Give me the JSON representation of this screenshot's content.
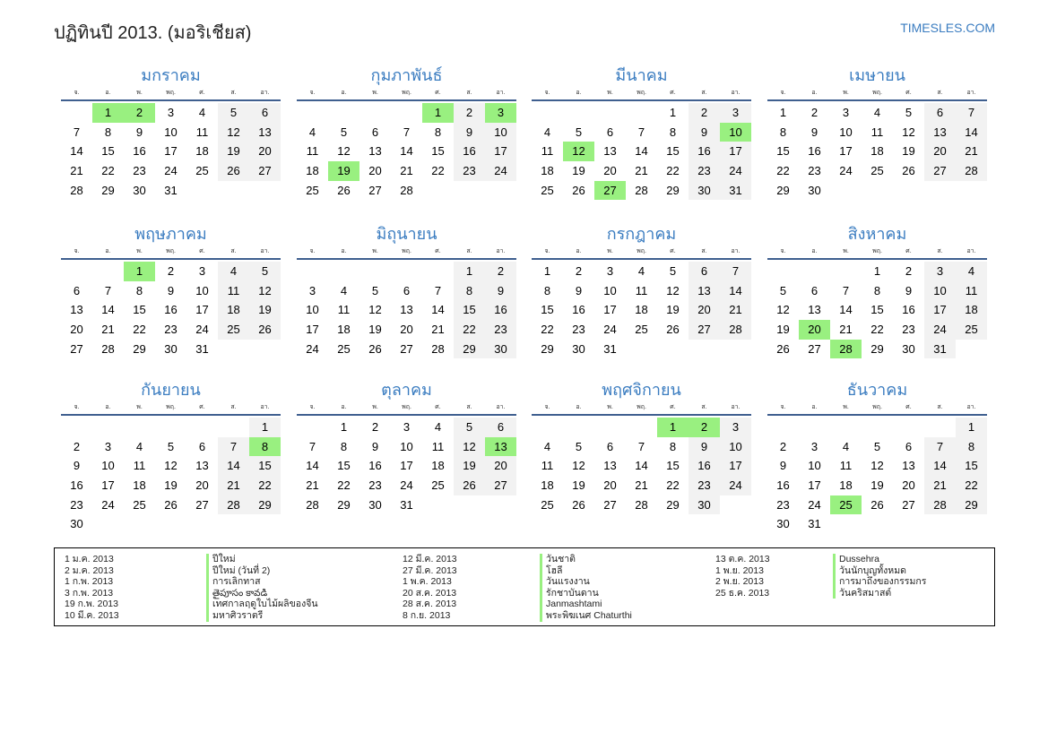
{
  "header": {
    "title": "ปฏิทินปี 2013. (มอริเชียส)",
    "site": "TIMESLES.COM"
  },
  "year": 2013,
  "colors": {
    "accent": "#3a7cc0",
    "holiday": "#99f080",
    "weekend": "#f2f2f2"
  },
  "weekdays": [
    "จ.",
    "อ.",
    "พ.",
    "พฤ.",
    "ศ.",
    "ส.",
    "อา."
  ],
  "months": [
    {
      "name": "มกราคม",
      "holidays": [
        1,
        2
      ]
    },
    {
      "name": "กุมภาพันธ์",
      "holidays": [
        1,
        3,
        19
      ]
    },
    {
      "name": "มีนาคม",
      "holidays": [
        10,
        12,
        27
      ]
    },
    {
      "name": "เมษายน",
      "holidays": []
    },
    {
      "name": "พฤษภาคม",
      "holidays": [
        1
      ]
    },
    {
      "name": "มิถุนายน",
      "holidays": []
    },
    {
      "name": "กรกฎาคม",
      "holidays": []
    },
    {
      "name": "สิงหาคม",
      "holidays": [
        20,
        28
      ]
    },
    {
      "name": "กันยายน",
      "holidays": [
        8
      ]
    },
    {
      "name": "ตุลาคม",
      "holidays": [
        13
      ]
    },
    {
      "name": "พฤศจิกายน",
      "holidays": [
        1,
        2
      ]
    },
    {
      "name": "ธันวาคม",
      "holidays": [
        25
      ]
    }
  ],
  "legend": [
    [
      {
        "date": "1 ม.ค. 2013",
        "name": "ปีใหม่"
      },
      {
        "date": "2 ม.ค. 2013",
        "name": "ปีใหม่ (วันที่ 2)"
      },
      {
        "date": "1 ก.พ. 2013",
        "name": "การเลิกทาส"
      },
      {
        "date": "3 ก.พ. 2013",
        "name": "తైపూసం కావడి"
      },
      {
        "date": "19 ก.พ. 2013",
        "name": "เทศกาลฤดูใบไม้ผลิของจีน"
      },
      {
        "date": "10 มี.ค. 2013",
        "name": "มหาศิวราตรี"
      }
    ],
    [
      {
        "date": "12 มี.ค. 2013",
        "name": "วันชาติ"
      },
      {
        "date": "27 มี.ค. 2013",
        "name": "โฮลี"
      },
      {
        "date": "1 พ.ค. 2013",
        "name": "วันแรงงาน"
      },
      {
        "date": "20 ส.ค. 2013",
        "name": "รักชาบันดาน"
      },
      {
        "date": "28 ส.ค. 2013",
        "name": "Janmashtami"
      },
      {
        "date": "8 ก.ย. 2013",
        "name": "พระพิฆเนศ Chaturthi"
      }
    ],
    [
      {
        "date": "13 ต.ค. 2013",
        "name": "Dussehra"
      },
      {
        "date": "1 พ.ย. 2013",
        "name": "วันนักบุญทั้งหมด"
      },
      {
        "date": "2 พ.ย. 2013",
        "name": "การมาถึงของกรรมกร"
      },
      {
        "date": "25 ธ.ค. 2013",
        "name": "วันคริสมาสต์"
      }
    ]
  ]
}
